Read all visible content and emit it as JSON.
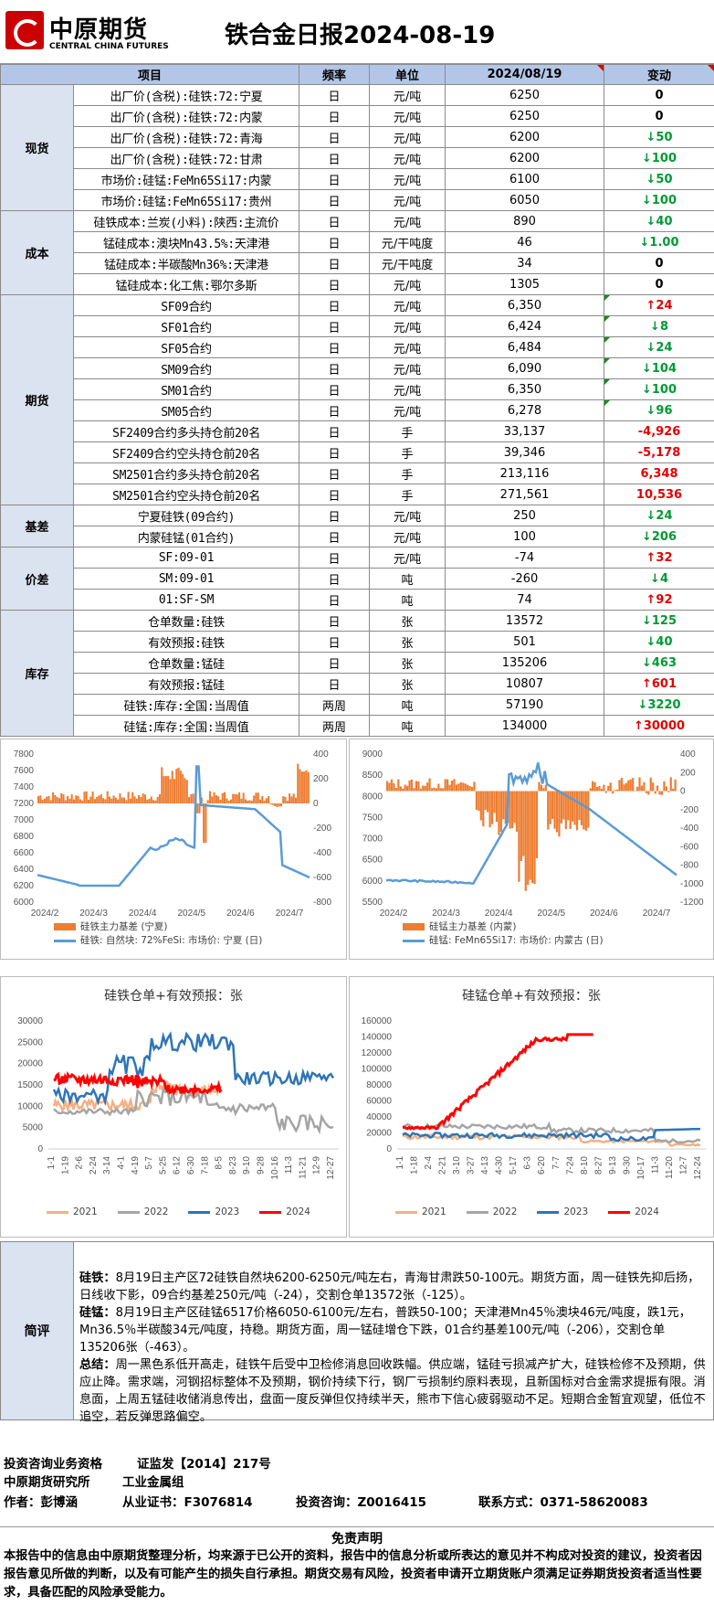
{
  "header": {
    "logo_cn": "中原期货",
    "logo_en": "CENTRAL CHINA FUTURES",
    "title": "铁合金日报2024-08-19"
  },
  "table": {
    "columns": [
      "项目",
      "频率",
      "单位",
      "2024/08/19",
      "变动"
    ],
    "groups": [
      {
        "name": "现货",
        "rows": [
          {
            "item": "出厂价(含税):硅铁:72:宁夏",
            "freq": "日",
            "unit": "元/吨",
            "value": "6250",
            "change": "0",
            "dir": "flat"
          },
          {
            "item": "出厂价(含税):硅铁:72:内蒙",
            "freq": "日",
            "unit": "元/吨",
            "value": "6250",
            "change": "0",
            "dir": "flat"
          },
          {
            "item": "出厂价(含税):硅铁:72:青海",
            "freq": "日",
            "unit": "元/吨",
            "value": "6200",
            "change": "50",
            "dir": "down"
          },
          {
            "item": "出厂价(含税):硅铁:72:甘肃",
            "freq": "日",
            "unit": "元/吨",
            "value": "6200",
            "change": "100",
            "dir": "down"
          },
          {
            "item": "市场价:硅锰:FeMn65Si17:内蒙",
            "freq": "日",
            "unit": "元/吨",
            "value": "6100",
            "change": "50",
            "dir": "down"
          },
          {
            "item": "市场价:硅锰:FeMn65Si17:贵州",
            "freq": "日",
            "unit": "元/吨",
            "value": "6050",
            "change": "100",
            "dir": "down"
          }
        ]
      },
      {
        "name": "成本",
        "rows": [
          {
            "item": "硅铁成本:兰炭(小料):陕西:主流价",
            "freq": "日",
            "unit": "元/吨",
            "value": "890",
            "change": "40",
            "dir": "down"
          },
          {
            "item": "锰硅成本:澳块Mn43.5%:天津港",
            "freq": "日",
            "unit": "元/干吨度",
            "value": "46",
            "change": "1.00",
            "dir": "down"
          },
          {
            "item": "锰硅成本:半碳酸Mn36%:天津港",
            "freq": "日",
            "unit": "元/干吨度",
            "value": "34",
            "change": "0",
            "dir": "flat"
          },
          {
            "item": "锰硅成本:化工焦:鄂尔多斯",
            "freq": "日",
            "unit": "元/吨",
            "value": "1305",
            "change": "0",
            "dir": "flat"
          }
        ]
      },
      {
        "name": "期货",
        "rows": [
          {
            "item": "SF09合约",
            "freq": "日",
            "unit": "元/吨",
            "value": "6,350",
            "change": "24",
            "dir": "up",
            "flag": "l"
          },
          {
            "item": "SF01合约",
            "freq": "日",
            "unit": "元/吨",
            "value": "6,424",
            "change": "8",
            "dir": "down",
            "flag": "l"
          },
          {
            "item": "SF05合约",
            "freq": "日",
            "unit": "元/吨",
            "value": "6,484",
            "change": "24",
            "dir": "down",
            "flag": "l"
          },
          {
            "item": "SM09合约",
            "freq": "日",
            "unit": "元/吨",
            "value": "6,090",
            "change": "104",
            "dir": "down",
            "flag": "l"
          },
          {
            "item": "SM01合约",
            "freq": "日",
            "unit": "元/吨",
            "value": "6,350",
            "change": "100",
            "dir": "down",
            "flag": "l"
          },
          {
            "item": "SM05合约",
            "freq": "日",
            "unit": "元/吨",
            "value": "6,278",
            "change": "96",
            "dir": "down",
            "flag": "l"
          },
          {
            "item": "SF2409合约多头持仓前20名",
            "freq": "日",
            "unit": "手",
            "value": "33,137",
            "change": "-4,926",
            "dir": "red"
          },
          {
            "item": "SF2409合约空头持仓前20名",
            "freq": "日",
            "unit": "手",
            "value": "39,346",
            "change": "-5,178",
            "dir": "red"
          },
          {
            "item": "SM2501合约多头持仓前20名",
            "freq": "日",
            "unit": "手",
            "value": "213,116",
            "change": "6,348",
            "dir": "red"
          },
          {
            "item": "SM2501合约空头持仓前20名",
            "freq": "日",
            "unit": "手",
            "value": "271,561",
            "change": "10,536",
            "dir": "red"
          }
        ]
      },
      {
        "name": "基差",
        "rows": [
          {
            "item": "宁夏硅铁(09合约)",
            "freq": "日",
            "unit": "元/吨",
            "value": "250",
            "change": "24",
            "dir": "down"
          },
          {
            "item": "内蒙硅锰(01合约)",
            "freq": "日",
            "unit": "元/吨",
            "value": "100",
            "change": "206",
            "dir": "down"
          }
        ]
      },
      {
        "name": "价差",
        "rows": [
          {
            "item": "SF:09-01",
            "freq": "日",
            "unit": "元/吨",
            "value": "-74",
            "change": "32",
            "dir": "up"
          },
          {
            "item": "SM:09-01",
            "freq": "日",
            "unit": "吨",
            "value": "-260",
            "change": "4",
            "dir": "down"
          },
          {
            "item": "01:SF-SM",
            "freq": "日",
            "unit": "吨",
            "value": "74",
            "change": "92",
            "dir": "up"
          }
        ]
      },
      {
        "name": "库存",
        "rows": [
          {
            "item": "仓单数量:硅铁",
            "freq": "日",
            "unit": "张",
            "value": "13572",
            "change": "125",
            "dir": "down"
          },
          {
            "item": "有效预报:硅铁",
            "freq": "日",
            "unit": "张",
            "value": "501",
            "change": "40",
            "dir": "down"
          },
          {
            "item": "仓单数量:锰硅",
            "freq": "日",
            "unit": "张",
            "value": "135206",
            "change": "463",
            "dir": "down"
          },
          {
            "item": "有效预报:锰硅",
            "freq": "日",
            "unit": "张",
            "value": "10807",
            "change": "601",
            "dir": "up"
          },
          {
            "item": "硅铁:库存:全国:当周值",
            "freq": "两周",
            "unit": "吨",
            "value": "57190",
            "change": "3220",
            "dir": "down"
          },
          {
            "item": "硅锰:库存:全国:当周值",
            "freq": "两周",
            "unit": "吨",
            "value": "134000",
            "change": "30000",
            "dir": "up"
          }
        ]
      }
    ]
  },
  "chart_data": [
    {
      "type": "line",
      "title": "",
      "x": [
        "2024/2",
        "2024/3",
        "2024/4",
        "2024/5",
        "2024/6",
        "2024/7"
      ],
      "ylim": [
        6000,
        7800
      ],
      "y2lim": [
        -800,
        400
      ],
      "series": [
        {
          "name": "硅铁主力基差 (宁夏)",
          "kind": "bar",
          "axis": "right",
          "color": "#ed7d31"
        },
        {
          "name": "硅铁: 自然块: 72%FeSi: 市场价: 宁夏 (日)",
          "kind": "line",
          "axis": "left",
          "color": "#5b9bd5"
        }
      ],
      "left_ticks": [
        "7800",
        "7600",
        "7400",
        "7200",
        "7000",
        "6800",
        "6600",
        "6400",
        "6200",
        "6000"
      ],
      "right_ticks": [
        "400",
        "200",
        "0",
        "-200",
        "-400",
        "-600",
        "-800"
      ]
    },
    {
      "type": "line",
      "title": "",
      "x": [
        "2024/2",
        "2024/3",
        "2024/4",
        "2024/5",
        "2024/6",
        "2024/7"
      ],
      "ylim": [
        5500,
        9000
      ],
      "y2lim": [
        -1200,
        400
      ],
      "series": [
        {
          "name": "硅锰主力基差 (内蒙)",
          "kind": "bar",
          "axis": "right",
          "color": "#ed7d31"
        },
        {
          "name": "硅锰: FeMn65Si17: 市场价: 内蒙古 (日)",
          "kind": "line",
          "axis": "left",
          "color": "#5b9bd5"
        }
      ],
      "left_ticks": [
        "9000",
        "8500",
        "8000",
        "7500",
        "7000",
        "6500",
        "6000",
        "5500"
      ],
      "right_ticks": [
        "400",
        "200",
        "0",
        "-200",
        "-400",
        "-600",
        "-800",
        "-1000",
        "-1200"
      ]
    },
    {
      "type": "line",
      "title": "硅铁仓单+有效预报：张",
      "ylim": [
        0,
        30000
      ],
      "x": [
        "1-1",
        "1-19",
        "2-6",
        "2-24",
        "3-14",
        "4-1",
        "4-19",
        "5-7",
        "5-25",
        "6-12",
        "6-30",
        "7-18",
        "8-5",
        "8-23",
        "9-10",
        "9-28",
        "10-16",
        "11-3",
        "11-21",
        "12-9",
        "12-27"
      ],
      "left_ticks": [
        "30000",
        "25000",
        "20000",
        "15000",
        "10000",
        "5000",
        "0"
      ],
      "series": [
        {
          "name": "2021",
          "color": "#f4b183"
        },
        {
          "name": "2022",
          "color": "#a5a5a5"
        },
        {
          "name": "2023",
          "color": "#2e75b6"
        },
        {
          "name": "2024",
          "color": "#ff0000"
        }
      ]
    },
    {
      "type": "line",
      "title": "硅锰仓单+有效预报：张",
      "ylim": [
        0,
        160000
      ],
      "x": [
        "1-1",
        "1-18",
        "2-4",
        "2-21",
        "3-10",
        "3-27",
        "4-13",
        "4-30",
        "5-17",
        "6-3",
        "6-20",
        "7-7",
        "7-24",
        "8-10",
        "8-27",
        "9-13",
        "9-30",
        "10-17",
        "11-3",
        "11-20",
        "12-7",
        "12-24"
      ],
      "left_ticks": [
        "160000",
        "140000",
        "120000",
        "100000",
        "80000",
        "60000",
        "40000",
        "20000",
        "0"
      ],
      "series": [
        {
          "name": "2021",
          "color": "#f4b183"
        },
        {
          "name": "2022",
          "color": "#a5a5a5"
        },
        {
          "name": "2023",
          "color": "#2e75b6"
        },
        {
          "name": "2024",
          "color": "#ff0000"
        }
      ]
    }
  ],
  "comment": {
    "label": "简评",
    "sf_tag": "硅铁：",
    "sf": "8月19日主产区72硅铁自然块6200-6250元/吨左右，青海甘肃跌50-100元。期货方面，周一硅铁先抑后扬，日线收下影，09合约基差250元/吨（-24），交割仓单13572张（-125）。",
    "sm_tag": "硅锰：",
    "sm": "8月19日主产区硅锰6517价格6050-6100元/左右，普跌50-100；天津港Mn45％澳块46元/吨度，跌1元，Mn36.5％半碳酸34元/吨度，持稳。期货方面，周一锰硅增仓下跌，01合约基差100元/吨（-206），交割仓单135206张（-463）。",
    "sum_tag": "总结：",
    "sum": "周一黑色系低开高走，硅铁午后受中卫检修消息回收跌幅。供应端，锰硅亏损减产扩大，硅铁检修不及预期，供应止降。需求端，河钢招标整体不及预期，钢价持续下行，钢厂亏损制约原料表现，且新国标对合金需求提振有限。消息面，上周五锰硅收储消息传出，盘面一度反弹但仅持续半天，熊市下信心疲弱驱动不足。短期合金暂宜观望，低位不追空，若反弹思路偏空。"
  },
  "footer": {
    "l1a": "投资咨询业务资格",
    "l1b": "证监发【2014】217号",
    "l2a": "中原期货研究所",
    "l2b": "工业金属组",
    "l3a": "作者：彭博涵",
    "l3b": "从业证书：F3076814",
    "l3c": "投资咨询：Z0016415",
    "l3d": "联系方式：0371-58620083"
  },
  "disclaimer": {
    "title": "免责声明",
    "body": "本报告中的信息由中原期货整理分析，均来源于已公开的资料，报告中的信息分析或所表达的意见并不构成对投资的建议，投资者因报告意见所做的判断，以及有可能产生的损失自行承担。期货交易有风险，投资者申请开立期货账户须满足证券期货投资者适当性要求，具备匹配的风险承受能力。"
  }
}
